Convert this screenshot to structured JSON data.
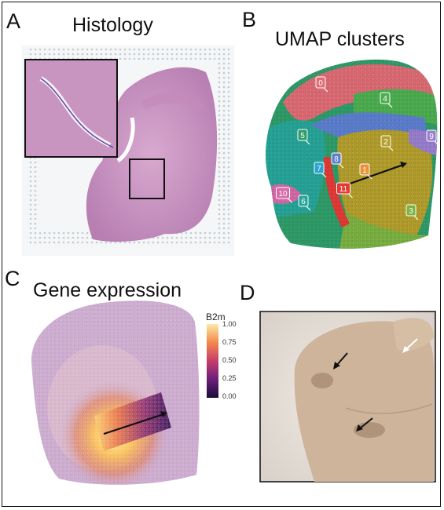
{
  "panels": {
    "a": {
      "letter": "A",
      "title": "Histology"
    },
    "b": {
      "letter": "B",
      "title": "UMAP clusters"
    },
    "c": {
      "letter": "C",
      "title": "Gene expression"
    },
    "d": {
      "letter": "D"
    }
  },
  "clusters": [
    {
      "id": "0",
      "color": "#e06c75"
    },
    {
      "id": "1",
      "color": "#e8923a"
    },
    {
      "id": "2",
      "color": "#b5a02c"
    },
    {
      "id": "3",
      "color": "#7cb342"
    },
    {
      "id": "4",
      "color": "#4caf50"
    },
    {
      "id": "5",
      "color": "#2e9e6a"
    },
    {
      "id": "6",
      "color": "#26a69a"
    },
    {
      "id": "7",
      "color": "#29a3d6"
    },
    {
      "id": "8",
      "color": "#5c7fd1"
    },
    {
      "id": "9",
      "color": "#9b7fd1"
    },
    {
      "id": "10",
      "color": "#d86aa8"
    },
    {
      "id": "11",
      "color": "#e53935"
    }
  ],
  "colorbar": {
    "title": "B2m",
    "ticks": [
      "1.00",
      "0.75",
      "0.50",
      "0.25",
      "0.00"
    ]
  },
  "colors": {
    "histology_stain": "#c98fc2",
    "tissue_photo": "#cdb49a",
    "gene_low": "#2d0a4e",
    "gene_high": "#fde9a8"
  }
}
